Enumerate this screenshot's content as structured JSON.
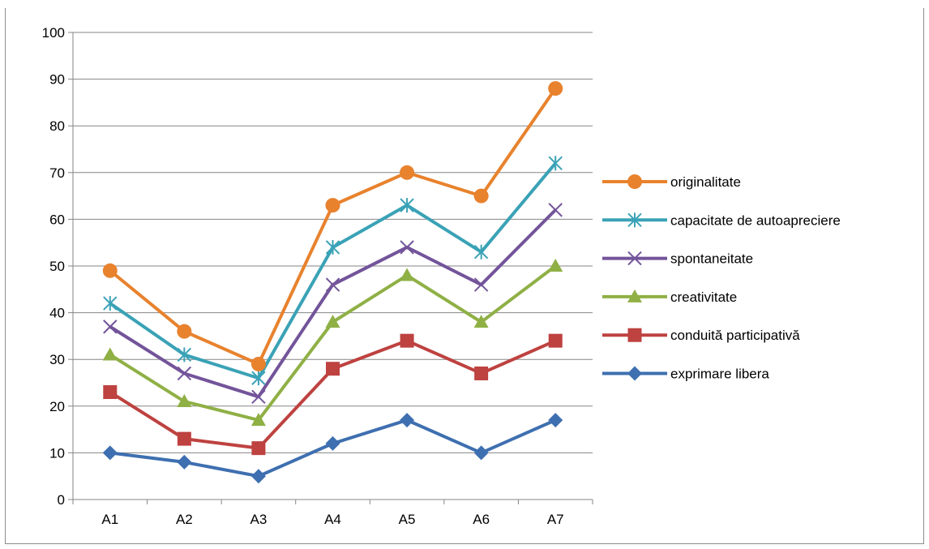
{
  "chart_data": {
    "type": "line",
    "title": "",
    "xlabel": "",
    "ylabel": "",
    "categories": [
      "A1",
      "A2",
      "A3",
      "A4",
      "A5",
      "A6",
      "A7"
    ],
    "ylim": [
      0,
      100
    ],
    "yticks": [
      "0",
      "10",
      "20",
      "30",
      "40",
      "50",
      "60",
      "70",
      "80",
      "90",
      "100"
    ],
    "grid": true,
    "legend_position": "right",
    "series": [
      {
        "name": "originalitate",
        "color": "#E8822D",
        "marker": "circle",
        "values": [
          49,
          36,
          29,
          63,
          70,
          65,
          88
        ]
      },
      {
        "name": "capacitate de autoapreciere",
        "color": "#3AA2B6",
        "marker": "asterisk",
        "values": [
          42,
          31,
          26,
          54,
          63,
          53,
          72
        ]
      },
      {
        "name": "spontaneitate",
        "color": "#73549A",
        "marker": "x",
        "values": [
          37,
          27,
          22,
          46,
          54,
          46,
          62
        ]
      },
      {
        "name": "creativitate",
        "color": "#8FB045",
        "marker": "triangle",
        "values": [
          31,
          21,
          17,
          38,
          48,
          38,
          50
        ]
      },
      {
        "name": "conduită participativă",
        "color": "#BE4240",
        "marker": "square",
        "values": [
          23,
          13,
          11,
          28,
          34,
          27,
          34
        ]
      },
      {
        "name": "exprimare libera",
        "color": "#3E6FB0",
        "marker": "diamond",
        "values": [
          10,
          8,
          5,
          12,
          17,
          10,
          17
        ]
      }
    ]
  }
}
